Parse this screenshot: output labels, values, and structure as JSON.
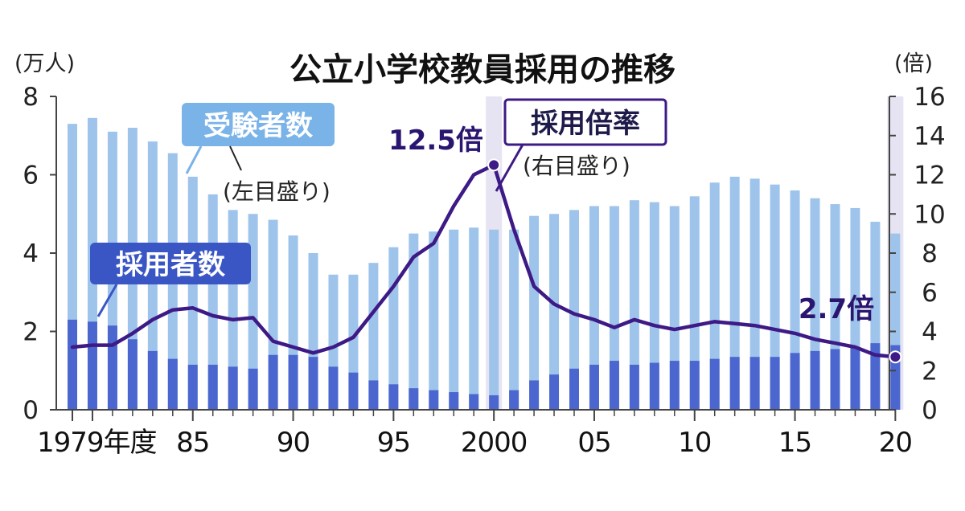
{
  "chart_data": {
    "type": "bar",
    "title": "公立小学校教員採用の推移",
    "left_axis": {
      "unit": "(万人)",
      "ylim": [
        0,
        8
      ],
      "ticks": [
        "0",
        "2",
        "4",
        "6",
        "8"
      ]
    },
    "right_axis": {
      "unit": "(倍)",
      "ylim": [
        0,
        16
      ],
      "ticks": [
        "0",
        "2",
        "4",
        "6",
        "8",
        "10",
        "12",
        "14",
        "16"
      ]
    },
    "x": [
      1979,
      1980,
      1981,
      1982,
      1983,
      1984,
      1985,
      1986,
      1987,
      1988,
      1989,
      1990,
      1991,
      1992,
      1993,
      1994,
      1995,
      1996,
      1997,
      1998,
      1999,
      2000,
      2001,
      2002,
      2003,
      2004,
      2005,
      2006,
      2007,
      2008,
      2009,
      2010,
      2011,
      2012,
      2013,
      2014,
      2015,
      2016,
      2017,
      2018,
      2019,
      2020
    ],
    "xtick_labels": [
      {
        "year": 1979,
        "label": "1979年度"
      },
      {
        "year": 1985,
        "label": "85"
      },
      {
        "year": 1990,
        "label": "90"
      },
      {
        "year": 1995,
        "label": "95"
      },
      {
        "year": 2000,
        "label": "2000"
      },
      {
        "year": 2005,
        "label": "05"
      },
      {
        "year": 2010,
        "label": "10"
      },
      {
        "year": 2015,
        "label": "15"
      },
      {
        "year": 2020,
        "label": "20"
      }
    ],
    "highlight_years": [
      2000,
      2020
    ],
    "series": [
      {
        "name": "受験者数",
        "note": "(左目盛り)",
        "kind": "bar",
        "axis": "left",
        "color": "#9ec4ec",
        "values": [
          7.3,
          7.45,
          7.1,
          7.2,
          6.85,
          6.55,
          5.95,
          5.5,
          5.1,
          5.0,
          4.85,
          4.45,
          4.0,
          3.45,
          3.45,
          3.75,
          4.15,
          4.5,
          4.55,
          4.6,
          4.65,
          4.6,
          4.6,
          4.95,
          5.0,
          5.1,
          5.2,
          5.2,
          5.35,
          5.3,
          5.2,
          5.45,
          5.8,
          5.95,
          5.9,
          5.75,
          5.6,
          5.4,
          5.25,
          5.15,
          4.8,
          4.5
        ]
      },
      {
        "name": "採用者数",
        "kind": "bar",
        "axis": "left",
        "color": "#4b67cf",
        "values": [
          2.3,
          2.25,
          2.15,
          1.8,
          1.5,
          1.3,
          1.15,
          1.15,
          1.1,
          1.05,
          1.4,
          1.4,
          1.35,
          1.1,
          0.95,
          0.75,
          0.65,
          0.55,
          0.5,
          0.45,
          0.4,
          0.37,
          0.5,
          0.75,
          0.9,
          1.05,
          1.15,
          1.25,
          1.15,
          1.2,
          1.25,
          1.25,
          1.3,
          1.35,
          1.35,
          1.35,
          1.45,
          1.5,
          1.55,
          1.6,
          1.7,
          1.65
        ]
      },
      {
        "name": "採用倍率",
        "note": "(右目盛り)",
        "kind": "line",
        "axis": "right",
        "color": "#3d1a85",
        "values": [
          3.2,
          3.3,
          3.3,
          3.9,
          4.6,
          5.1,
          5.2,
          4.8,
          4.6,
          4.7,
          3.5,
          3.2,
          2.9,
          3.2,
          3.7,
          5.0,
          6.3,
          7.8,
          8.5,
          10.4,
          12.0,
          12.5,
          9.2,
          6.3,
          5.4,
          4.9,
          4.6,
          4.2,
          4.6,
          4.3,
          4.1,
          4.3,
          4.5,
          4.4,
          4.3,
          4.1,
          3.9,
          3.6,
          3.4,
          3.2,
          2.8,
          2.7
        ]
      }
    ],
    "annotations": [
      {
        "text": "12.5倍",
        "year": 2000,
        "series": "採用倍率"
      },
      {
        "text": "2.7倍",
        "year": 2020,
        "series": "採用倍率"
      }
    ]
  }
}
